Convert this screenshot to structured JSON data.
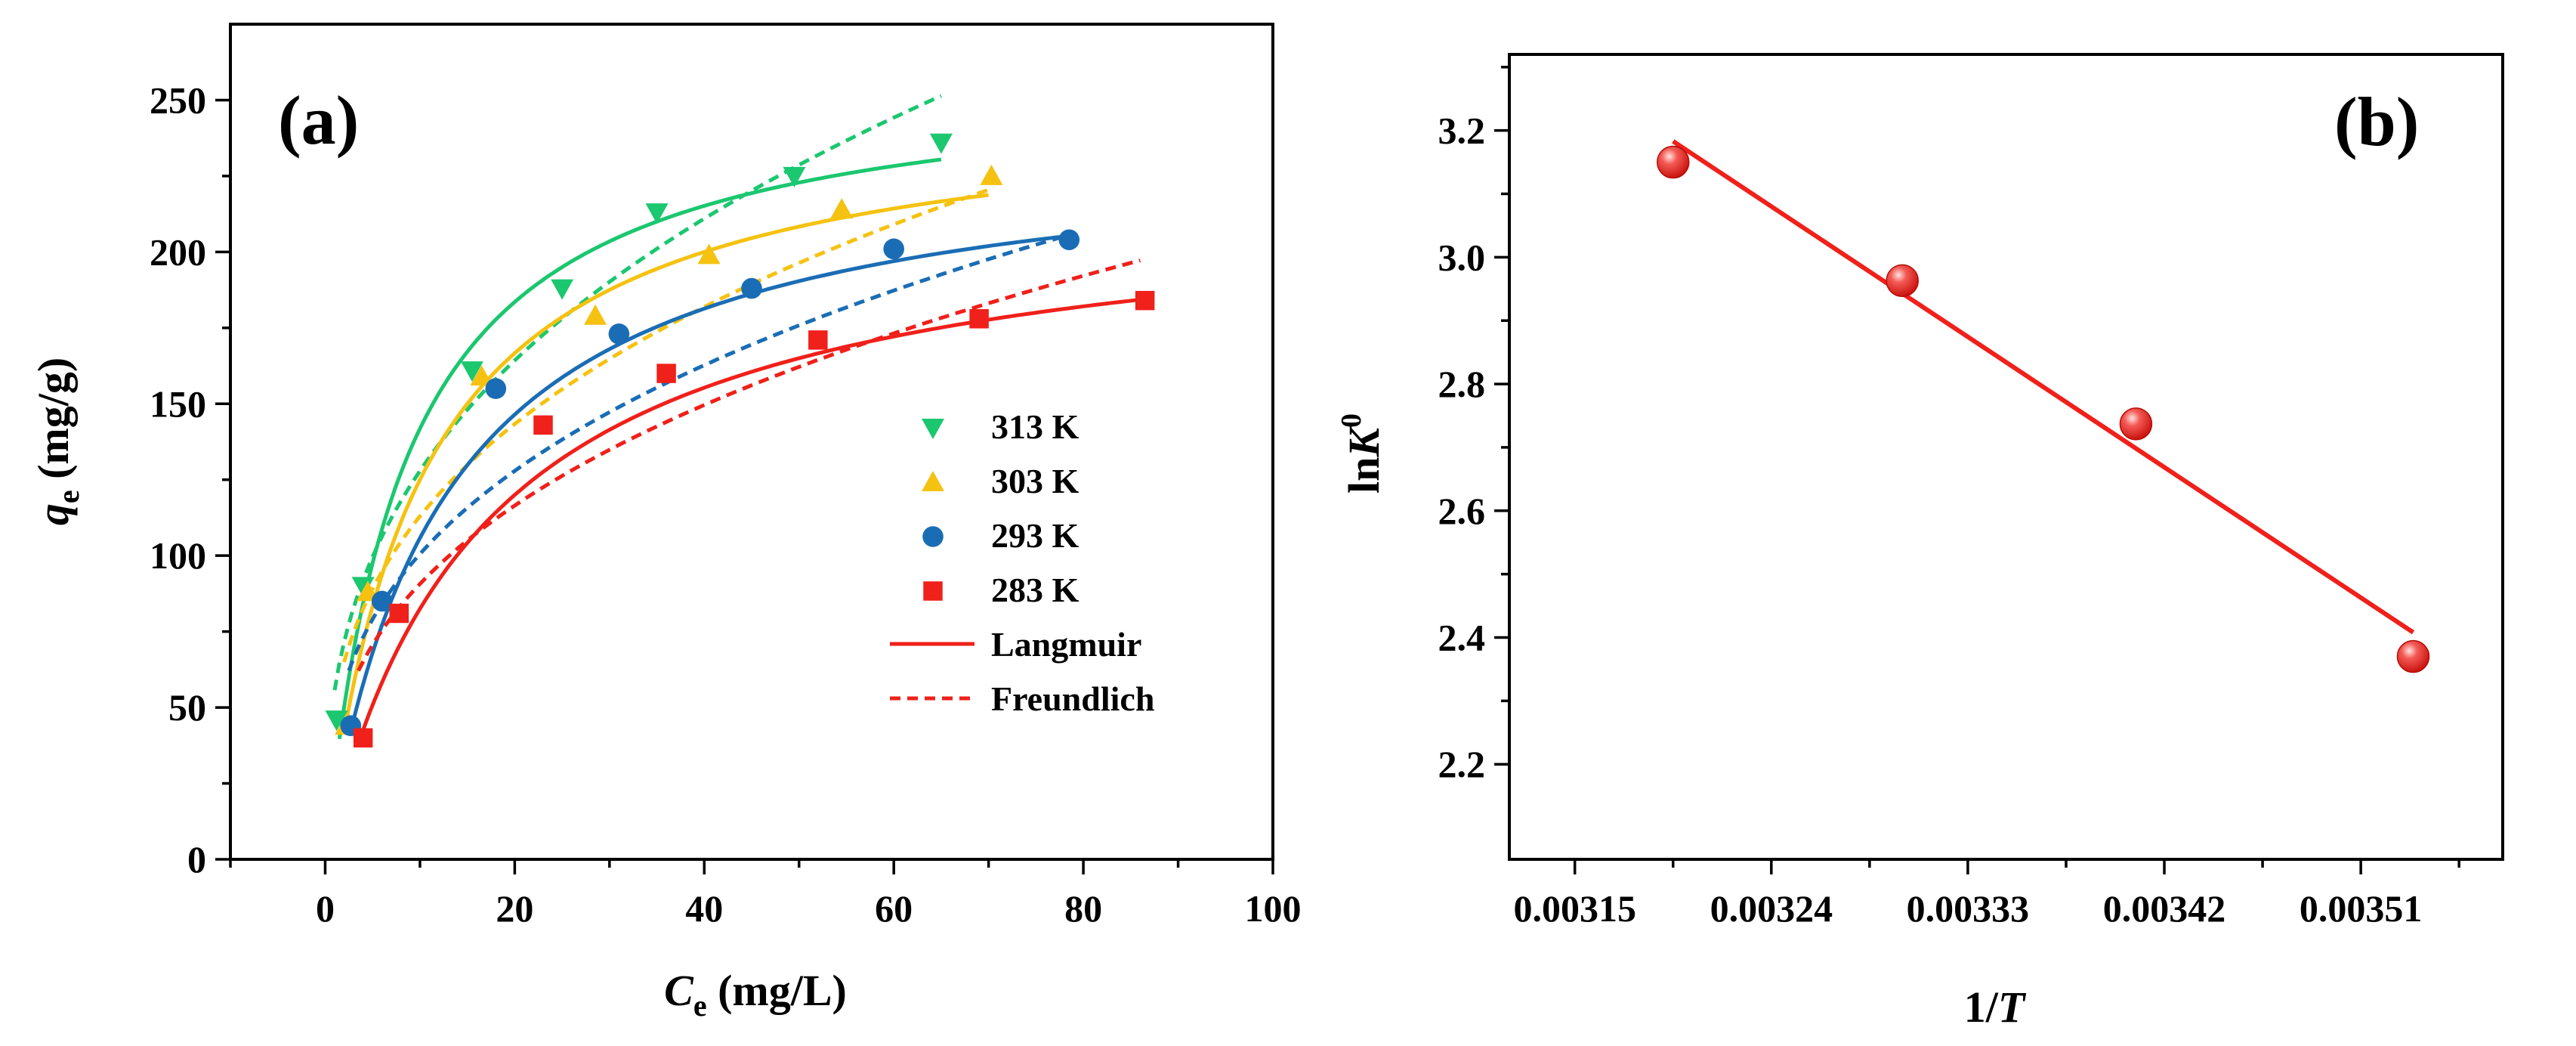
{
  "chart_data": [
    {
      "panel": "(a)",
      "type": "scatter",
      "xlabel_main": "C",
      "xlabel_sub": "e",
      "xlabel_unit": " (mg/L)",
      "ylabel_main": "q",
      "ylabel_sub": "e",
      "ylabel_unit": " (mg/g)",
      "xlim": [
        -10,
        100
      ],
      "ylim": [
        0,
        275
      ],
      "xticks": [
        0,
        20,
        40,
        60,
        80,
        100
      ],
      "yticks": [
        0,
        50,
        100,
        150,
        200,
        250
      ],
      "legend_position": "center-right",
      "series": [
        {
          "name": "313 K",
          "color": "#1bc76f",
          "marker": "triangle-down",
          "x": [
            1.2,
            4.0,
            15.5,
            25.0,
            35.0,
            49.5,
            65.0
          ],
          "y": [
            46,
            90,
            161,
            188,
            213,
            225,
            236
          ],
          "langmuir": {
            "qm": 260,
            "KL": 0.12,
            "xrange": [
              1.5,
              65
            ]
          },
          "freundlich": {
            "KF": 55.7,
            "n": 2.77,
            "xrange": [
              1.0,
              65
            ]
          }
        },
        {
          "name": "303 K",
          "color": "#f5c211",
          "marker": "triangle-up",
          "x": [
            2.2,
            4.5,
            16.5,
            28.5,
            40.5,
            54.5,
            70.3
          ],
          "y": [
            44,
            88,
            159,
            179,
            199,
            214,
            225
          ],
          "langmuir": {
            "qm": 250,
            "KL": 0.1,
            "xrange": [
              2.2,
              70
            ]
          },
          "freundlich": {
            "KF": 51.2,
            "n": 2.91,
            "xrange": [
              2.0,
              70
            ]
          }
        },
        {
          "name": "293 K",
          "color": "#1a6db5",
          "marker": "circle",
          "x": [
            2.7,
            6.0,
            18.0,
            31.0,
            45.0,
            60.0,
            78.5
          ],
          "y": [
            44,
            85,
            155,
            173,
            188,
            201,
            204
          ],
          "langmuir": {
            "qm": 238,
            "KL": 0.08,
            "xrange": [
              2.7,
              78
            ]
          },
          "freundlich": {
            "KF": 45.2,
            "n": 2.88,
            "xrange": [
              2.5,
              78
            ]
          }
        },
        {
          "name": "283 K",
          "color": "#f0201a",
          "marker": "square",
          "x": [
            4.0,
            7.8,
            23.0,
            36.0,
            52.0,
            69.0,
            86.5
          ],
          "y": [
            40,
            81,
            143,
            160,
            171,
            178,
            184
          ],
          "langmuir": {
            "qm": 220,
            "KL": 0.06,
            "xrange": [
              3.5,
              86
            ]
          },
          "freundlich": {
            "KF": 39.5,
            "n": 2.77,
            "xrange": [
              3.5,
              86
            ]
          }
        }
      ],
      "legend_extra": [
        {
          "name": "Langmuir",
          "style": "solid"
        },
        {
          "name": "Freundlich",
          "style": "dashed"
        }
      ]
    },
    {
      "panel": "(b)",
      "type": "scatter",
      "xlabel_main": "1/",
      "xlabel_italic": "T",
      "ylabel_main": "ln",
      "ylabel_italic": "K",
      "ylabel_sup": "0",
      "xlim": [
        0.00312,
        0.003575
      ],
      "ylim": [
        2.05,
        3.32
      ],
      "xticks": [
        0.00315,
        0.00324,
        0.00333,
        0.00342,
        0.00351
      ],
      "xtick_labels": [
        "0.00315",
        "0.00324",
        "0.00333",
        "0.00342",
        "0.00351"
      ],
      "yticks": [
        2.2,
        2.4,
        2.6,
        2.8,
        3.0,
        3.2
      ],
      "ytick_labels": [
        "2.2",
        "2.4",
        "2.6",
        "2.8",
        "3.0",
        "3.2"
      ],
      "series": [
        {
          "name": "lnK0",
          "color": "#f0201a",
          "marker": "sphere",
          "x": [
            0.003195,
            0.0033,
            0.003407,
            0.003534
          ],
          "y": [
            3.15,
            2.963,
            2.737,
            2.37
          ]
        }
      ],
      "fit_line": {
        "color": "#f0201a",
        "x": [
          0.003195,
          0.003534
        ],
        "y": [
          3.183,
          2.408
        ]
      }
    }
  ]
}
